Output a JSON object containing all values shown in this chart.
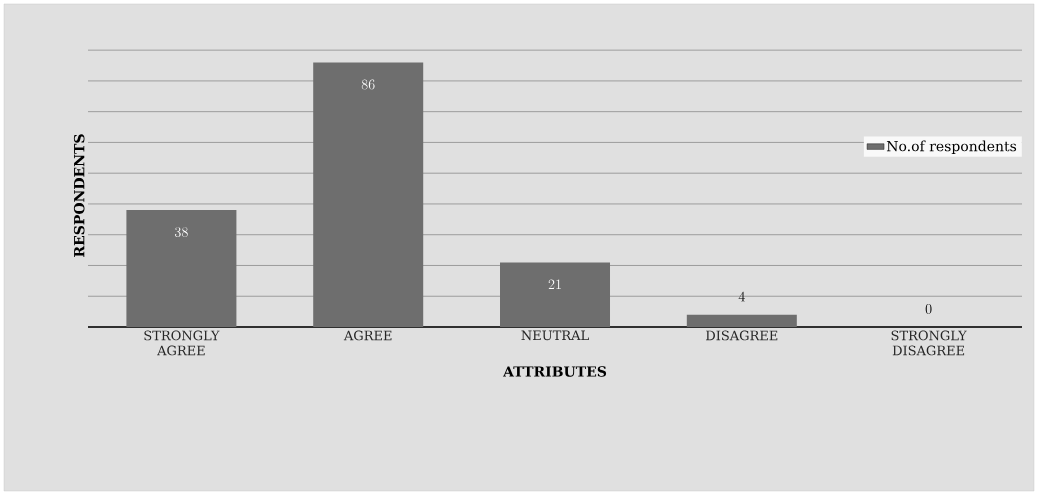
{
  "chart_data": {
    "type": "bar",
    "xlabel": "ATTRIBUTES",
    "ylabel": "RESPONDENTS",
    "categories": [
      "STRONGLY AGREE",
      "AGREE",
      "NEUTRAL",
      "DISAGREE",
      "STRONGLY DISAGREE"
    ],
    "series": [
      {
        "name": "No.of respondents",
        "color": "#6e6e6e",
        "values": [
          38,
          86,
          21,
          4,
          0
        ]
      }
    ],
    "tick_labels": "x",
    "grid": "y",
    "legend": "right",
    "data_labels": true
  }
}
